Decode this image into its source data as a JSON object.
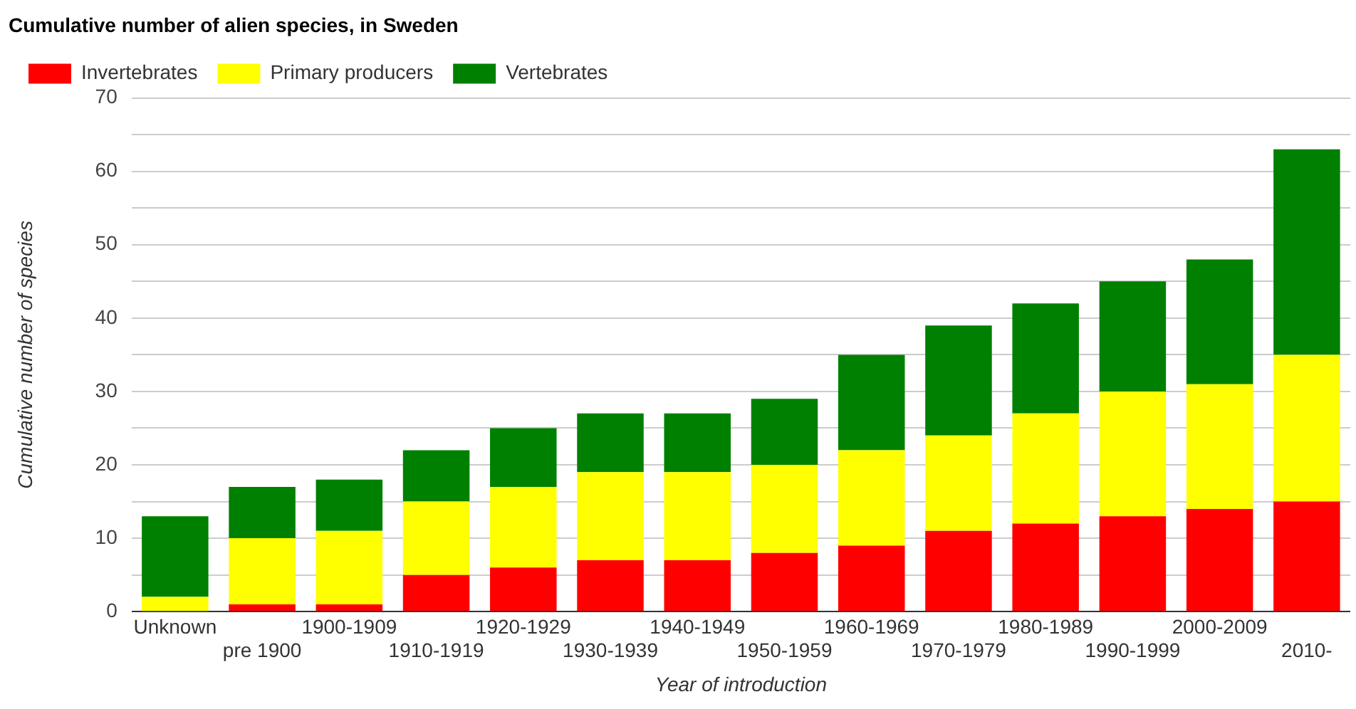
{
  "chart_data": {
    "type": "bar",
    "title": "Cumulative number of alien species, in Sweden",
    "xlabel": "Year of introduction",
    "ylabel": "Cumulative number of species",
    "categories": [
      "Unknown",
      "pre 1900",
      "1900-1909",
      "1910-1919",
      "1920-1929",
      "1930-1939",
      "1940-1949",
      "1950-1959",
      "1960-1969",
      "1970-1979",
      "1980-1989",
      "1990-1999",
      "2000-2009",
      "2010-"
    ],
    "series": [
      {
        "name": "Invertebrates",
        "color": "#ff0000",
        "values": [
          0,
          1,
          1,
          5,
          6,
          7,
          7,
          8,
          9,
          11,
          12,
          13,
          14,
          15
        ]
      },
      {
        "name": "Primary producers",
        "color": "#ffff00",
        "values": [
          2,
          9,
          10,
          10,
          11,
          12,
          12,
          12,
          13,
          13,
          15,
          17,
          17,
          20
        ]
      },
      {
        "name": "Vertebrates",
        "color": "#008000",
        "values": [
          11,
          7,
          7,
          7,
          8,
          8,
          8,
          9,
          13,
          15,
          15,
          15,
          17,
          28
        ]
      }
    ],
    "stacked": true,
    "ylim": [
      0,
      70
    ],
    "yticks": [
      0,
      {
        "value": 5,
        "label": null
      },
      10,
      {
        "value": 15,
        "label": null
      },
      20,
      {
        "value": 25,
        "label": null
      },
      30,
      {
        "value": 35,
        "label": null
      },
      40,
      {
        "value": 45,
        "label": null
      },
      50,
      {
        "value": 55,
        "label": null
      },
      60,
      {
        "value": 65,
        "label": null
      },
      70
    ],
    "grid": "y",
    "legend": "top left"
  }
}
